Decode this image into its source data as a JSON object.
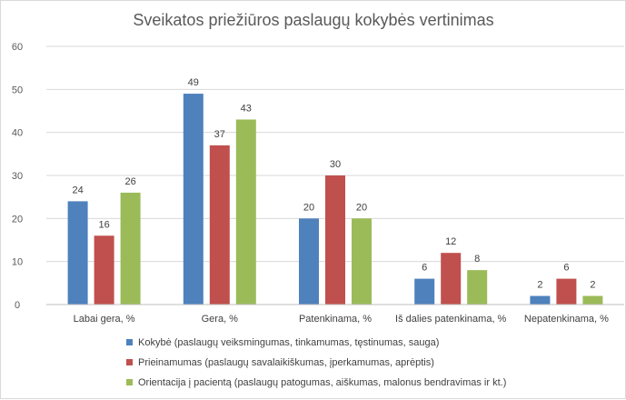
{
  "chart_data": {
    "type": "bar",
    "title": "Sveikatos priežiūros paslaugų kokybės vertinimas",
    "categories": [
      "Labai gera, %",
      "Gera, %",
      "Patenkinama, %",
      "Iš dalies patenkinama, %",
      "Nepatenkinama, %"
    ],
    "series": [
      {
        "name": "Kokybė (paslaugų veiksmingumas, tinkamumas, tęstinumas, sauga)",
        "color": "#4f81bd",
        "values": [
          24,
          49,
          20,
          6,
          2
        ]
      },
      {
        "name": "Prieinamumas (paslaugų savalaikiškumas, įperkamumas, aprėptis)",
        "color": "#c0504d",
        "values": [
          16,
          37,
          30,
          12,
          6
        ]
      },
      {
        "name": "Orientacija į pacientą (paslaugų patogumas, aiškumas, malonus bendravimas ir kt.)",
        "color": "#9bbb59",
        "values": [
          26,
          43,
          20,
          8,
          2
        ]
      }
    ],
    "ylim": [
      0,
      60
    ],
    "yticks": [
      0,
      10,
      20,
      30,
      40,
      50,
      60
    ],
    "grid": true,
    "legend": "bottom"
  }
}
